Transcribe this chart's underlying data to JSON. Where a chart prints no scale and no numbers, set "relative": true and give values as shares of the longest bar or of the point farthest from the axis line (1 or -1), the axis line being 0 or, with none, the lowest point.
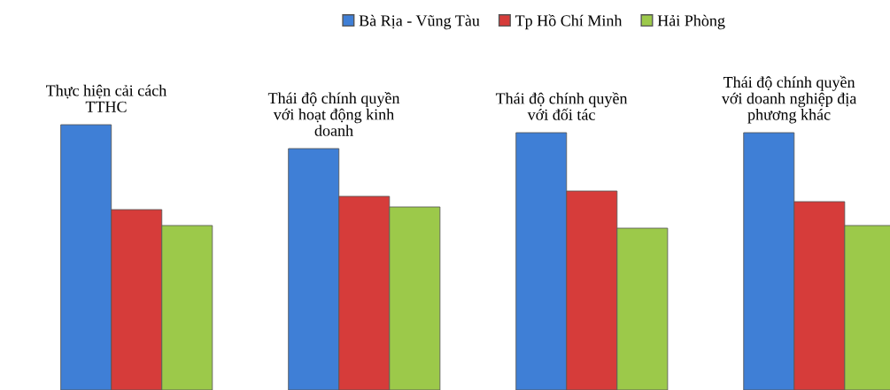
{
  "chart_data": {
    "type": "bar",
    "relative": true,
    "legend": "top",
    "categories": [
      "Thực hiện cải cách\nTTHC",
      "Thái độ chính quyền\nvới hoạt động kinh\ndoanh",
      "Thái độ chính quyền\nvới đối tác",
      "Thái độ chính quyền\nvới doanh nghiệp địa\nphương khác"
    ],
    "series": [
      {
        "name": "Bà Rịa - Vũng Tàu",
        "color": "#3f7fd6",
        "values": [
          1,
          0.91,
          0.97,
          0.97
        ]
      },
      {
        "name": "Tp Hồ Chí Minh",
        "color": "#d63c3a",
        "values": [
          0.68,
          0.73,
          0.75,
          0.71
        ]
      },
      {
        "name": "Hải Phòng",
        "color": "#9cc94a",
        "values": [
          0.62,
          0.69,
          0.61,
          0.62
        ]
      }
    ]
  }
}
